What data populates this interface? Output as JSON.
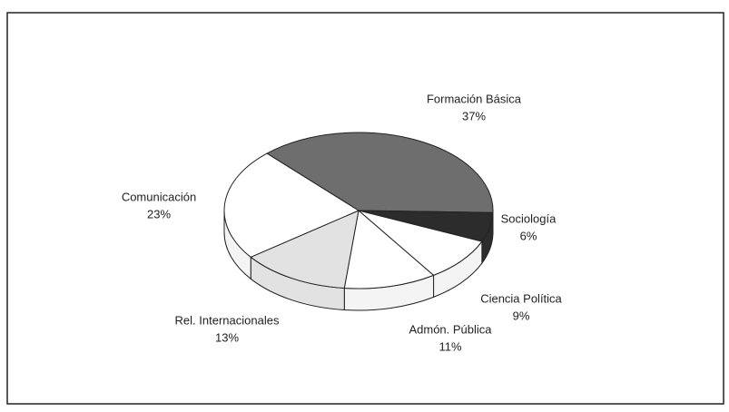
{
  "chart_data": {
    "type": "pie3d",
    "categories": [
      "Formación Básica",
      "Sociología",
      "Ciencia Política",
      "Admón. Pública",
      "Rel. Internacionales",
      "Comunicación"
    ],
    "values": [
      37,
      6,
      9,
      11,
      13,
      23
    ],
    "value_labels": [
      "37%",
      "6%",
      "9%",
      "11%",
      "13%",
      "23%"
    ],
    "colors": [
      "#6e6e6e",
      "#2c2c2c",
      "#ffffff",
      "#ffffff",
      "#e2e2e2",
      "#ffffff"
    ]
  }
}
